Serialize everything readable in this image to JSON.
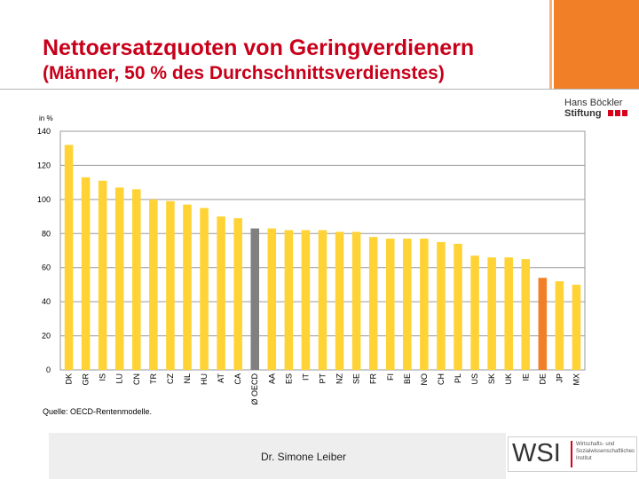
{
  "header": {
    "title": "Nettoersatzquoten von Geringverdienern",
    "subtitle": "(Männer, 50 % des Durchschnittsverdienstes)"
  },
  "logo": {
    "line1": "Hans Böckler",
    "line2": "Stiftung"
  },
  "footer": {
    "source": "Quelle: OECD-Rentenmodelle.",
    "author": "Dr. Simone Leiber",
    "wsi_letters": "WSI",
    "wsi_desc_1": "Wirtschafts- und",
    "wsi_desc_2": "Sozialwissenschaftliches",
    "wsi_desc_3": "Institut"
  },
  "colors": {
    "title": "#c8001a",
    "bar_default": "#ffd335",
    "bar_oecd_avg": "#808080",
    "bar_highlight": "#f07f28",
    "accent_orange": "#f07f28"
  },
  "chart_data": {
    "type": "bar",
    "unit_label": "in %",
    "ylim": [
      0,
      140
    ],
    "yticks": [
      0,
      20,
      40,
      60,
      80,
      100,
      120,
      140
    ],
    "grid": true,
    "categories": [
      "DK",
      "GR",
      "IS",
      "LU",
      "CN",
      "TR",
      "CZ",
      "NL",
      "HU",
      "AT",
      "CA",
      "Ø OECD",
      "AA",
      "ES",
      "IT",
      "PT",
      "NZ",
      "SE",
      "FR",
      "FI",
      "BE",
      "NO",
      "CH",
      "PL",
      "US",
      "SK",
      "UK",
      "IE",
      "DE",
      "JP",
      "MX"
    ],
    "values": [
      132,
      113,
      111,
      107,
      106,
      100,
      99,
      97,
      95,
      90,
      89,
      83,
      83,
      82,
      82,
      82,
      81,
      81,
      78,
      77,
      77,
      77,
      75,
      74,
      67,
      66,
      66,
      65,
      54,
      52,
      50
    ],
    "highlight": {
      "Ø OECD": "bar_oecd_avg",
      "DE": "bar_highlight"
    }
  }
}
